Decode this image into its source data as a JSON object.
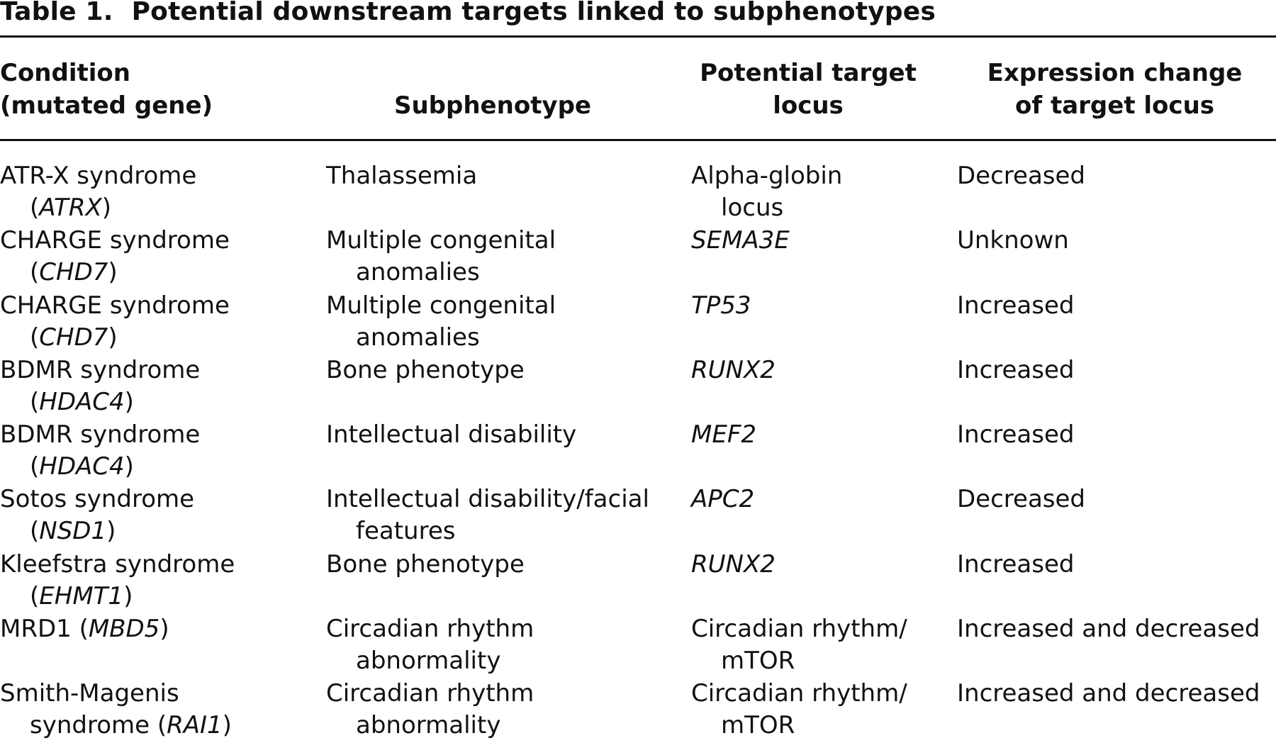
{
  "caption": {
    "label": "Table 1.",
    "title": "Potential downstream targets linked to subphenotypes"
  },
  "headers": {
    "condition_line1": "Condition",
    "condition_line2": "(mutated gene)",
    "subphenotype": "Subphenotype",
    "target_line1": "Potential target",
    "target_line2": "locus",
    "expression_line1": "Expression change",
    "expression_line2": "of target locus"
  },
  "rows": [
    {
      "condition": "ATR-X syndrome",
      "gene": "ATRX",
      "subphenotype_line1": "Thalassemia",
      "subphenotype_line2": "",
      "target_line1": "Alpha-globin",
      "target_line2": "locus",
      "expression": "Decreased"
    },
    {
      "condition": "CHARGE syndrome",
      "gene": "CHD7",
      "subphenotype_line1": "Multiple congenital",
      "subphenotype_line2": "anomalies",
      "target_line1": "SEMA3E",
      "target_line2": "",
      "expression": "Unknown"
    },
    {
      "condition": "CHARGE syndrome",
      "gene": "CHD7",
      "subphenotype_line1": "Multiple congenital",
      "subphenotype_line2": "anomalies",
      "target_line1": "TP53",
      "target_line2": "",
      "expression": "Increased"
    },
    {
      "condition": "BDMR syndrome",
      "gene": "HDAC4",
      "subphenotype_line1": "Bone phenotype",
      "subphenotype_line2": "",
      "target_line1": "RUNX2",
      "target_line2": "",
      "expression": "Increased"
    },
    {
      "condition": "BDMR syndrome",
      "gene": "HDAC4",
      "subphenotype_line1": "Intellectual disability",
      "subphenotype_line2": "",
      "target_line1": "MEF2",
      "target_line2": "",
      "expression": "Increased"
    },
    {
      "condition": "Sotos syndrome",
      "gene": "NSD1",
      "subphenotype_line1": "Intellectual disability/facial",
      "subphenotype_line2": "features",
      "target_line1": "APC2",
      "target_line2": "",
      "expression": "Decreased"
    },
    {
      "condition": "Kleefstra syndrome",
      "gene": "EHMT1",
      "subphenotype_line1": "Bone phenotype",
      "subphenotype_line2": "",
      "target_line1": "RUNX2",
      "target_line2": "",
      "expression": "Increased"
    },
    {
      "condition": "MRD1",
      "gene": "MBD5",
      "subphenotype_line1": "Circadian rhythm",
      "subphenotype_line2": "abnormality",
      "target_line1": "Circadian rhythm/",
      "target_line2": "mTOR",
      "expression": "Increased and decreased"
    },
    {
      "condition": "Smith-Magenis",
      "condition_line2": "syndrome",
      "gene": "RAI1",
      "subphenotype_line1": "Circadian rhythm",
      "subphenotype_line2": "abnormality",
      "target_line1": "Circadian rhythm/",
      "target_line2": "mTOR",
      "expression": "Increased and decreased"
    }
  ]
}
